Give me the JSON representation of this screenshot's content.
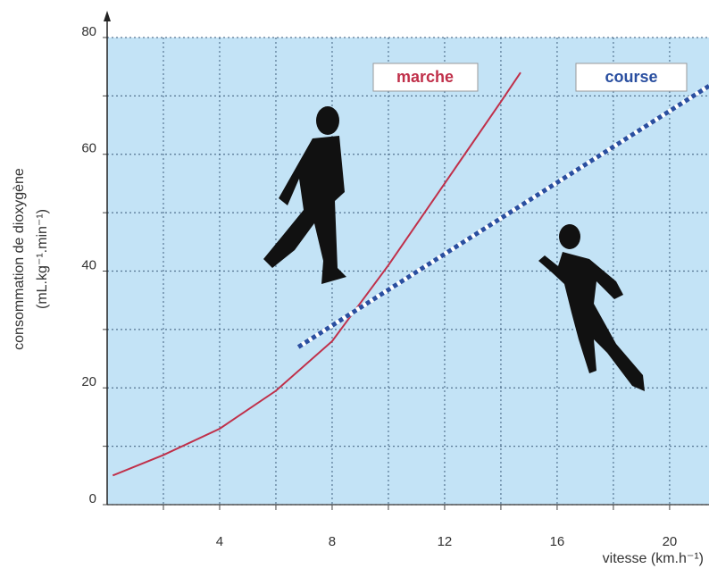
{
  "chart_data": {
    "type": "line",
    "y_axis_label": "consommation de dioxygène",
    "y_axis_unit": "(mL.kg⁻¹.min⁻¹)",
    "x_axis_label": "vitesse (km.h⁻¹)",
    "xlim": [
      0,
      21.4
    ],
    "ylim": [
      0,
      80
    ],
    "xticks": [
      4,
      8,
      12,
      16,
      20
    ],
    "yticks": [
      0,
      20,
      40,
      60,
      80
    ],
    "x_minor_ticks": [
      2,
      6,
      10,
      14,
      18
    ],
    "y_minor_ticks": [
      10,
      30,
      50,
      70
    ],
    "grid": true,
    "background": "#c3e3f6",
    "series": [
      {
        "name": "marche",
        "color": "#c0304a",
        "x": [
          0.2,
          2,
          4,
          6,
          8,
          10,
          12,
          14,
          14.7
        ],
        "values": [
          5,
          8.5,
          13,
          19.5,
          28,
          41,
          55,
          69,
          74
        ]
      },
      {
        "name": "course",
        "color": "#2a4fa0",
        "x": [
          6.8,
          21.4
        ],
        "values": [
          27,
          71.7
        ]
      }
    ]
  }
}
